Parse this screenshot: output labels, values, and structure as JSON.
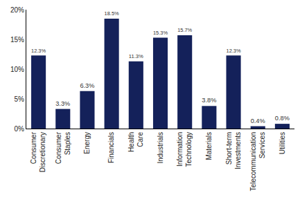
{
  "chart_data": {
    "type": "bar",
    "categories": [
      "Consumer Discretionary",
      "Consumer Staples",
      "Energy",
      "Financials",
      "Health Care",
      "Industrials",
      "Information Technology",
      "Materials",
      "Short-term Investments",
      "Telecommunication Services",
      "Utilities"
    ],
    "values": [
      12.3,
      3.3,
      6.3,
      18.5,
      11.3,
      15.3,
      15.7,
      3.8,
      12.3,
      0.4,
      0.8
    ],
    "value_labels": [
      "12.3%",
      "3.3%",
      "6.3%",
      "18.5%",
      "11.3%",
      "15.3%",
      "15.7%",
      "3.8%",
      "12.3%",
      "0.4%",
      "0.8%"
    ],
    "data_labels": true,
    "color": "#14215a",
    "ylim": [
      0,
      20
    ],
    "yticks": [
      {
        "value": 0,
        "label": "0%"
      },
      {
        "value": 5,
        "label": "5%"
      },
      {
        "value": 10,
        "label": "10%"
      },
      {
        "value": 15,
        "label": "15%"
      },
      {
        "value": 20,
        "label": "20%"
      }
    ],
    "grid": false
  }
}
